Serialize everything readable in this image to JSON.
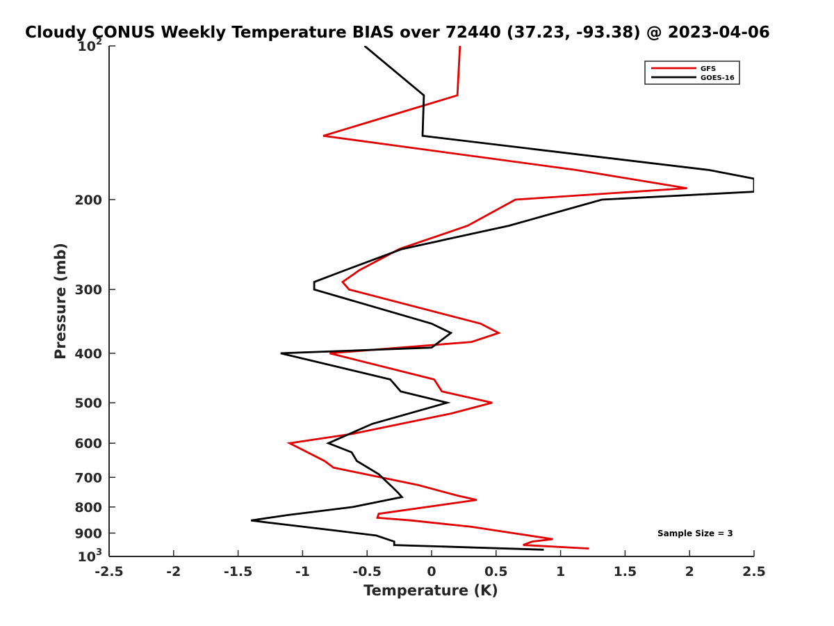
{
  "chart_data": {
    "type": "line",
    "title": "Cloudy CONUS Weekly Temperature BIAS over 72440 (37.23, -93.38) @ 2023-04-06",
    "xlabel": "Temperature (K)",
    "ylabel": "Pressure (mb)",
    "xlim": [
      -2.5,
      2.5
    ],
    "ylim": [
      100,
      1000
    ],
    "y_scale": "log",
    "y_reversed": true,
    "x_ticks": [
      -2.5,
      -2,
      -1.5,
      -1,
      -0.5,
      0,
      0.5,
      1,
      1.5,
      2,
      2.5
    ],
    "x_tick_labels": [
      "-2.5",
      "-2",
      "-1.5",
      "-1",
      "-0.5",
      "0",
      "0.5",
      "1",
      "1.5",
      "2",
      "2.5"
    ],
    "y_ticks": [
      {
        "value": 100,
        "base": "10",
        "exp": "2"
      },
      {
        "value": 200,
        "label": "200"
      },
      {
        "value": 300,
        "label": "300"
      },
      {
        "value": 400,
        "label": "400"
      },
      {
        "value": 500,
        "label": "500"
      },
      {
        "value": 600,
        "label": "600"
      },
      {
        "value": 700,
        "label": "700"
      },
      {
        "value": 800,
        "label": "800"
      },
      {
        "value": 900,
        "label": "900"
      },
      {
        "value": 1000,
        "base": "10",
        "exp": "3"
      }
    ],
    "grid": false,
    "legend_position": "top-right",
    "series": [
      {
        "name": "GFS",
        "color": "#e00000",
        "points": [
          [
            0.22,
            100
          ],
          [
            0.2,
            125
          ],
          [
            -0.84,
            150
          ],
          [
            1.12,
            175
          ],
          [
            1.98,
            190
          ],
          [
            0.65,
            200
          ],
          [
            0.28,
            225
          ],
          [
            -0.25,
            250
          ],
          [
            -0.56,
            275
          ],
          [
            -0.69,
            290
          ],
          [
            -0.64,
            300
          ],
          [
            0.38,
            350
          ],
          [
            0.52,
            365
          ],
          [
            0.31,
            380
          ],
          [
            -0.79,
            400
          ],
          [
            0.02,
            450
          ],
          [
            0.08,
            475
          ],
          [
            0.47,
            500
          ],
          [
            0.15,
            525
          ],
          [
            -0.61,
            575
          ],
          [
            -1.1,
            600
          ],
          [
            -0.83,
            650
          ],
          [
            -0.76,
            670
          ],
          [
            -0.1,
            725
          ],
          [
            0.2,
            760
          ],
          [
            0.35,
            775
          ],
          [
            -0.41,
            825
          ],
          [
            -0.42,
            840
          ],
          [
            -0.16,
            850
          ],
          [
            0.31,
            875
          ],
          [
            0.94,
            925
          ],
          [
            0.78,
            935
          ],
          [
            0.71,
            950
          ],
          [
            1.22,
            965
          ]
        ]
      },
      {
        "name": "GOES-16",
        "color": "#000000",
        "points": [
          [
            -0.52,
            100
          ],
          [
            -0.06,
            125
          ],
          [
            -0.07,
            150
          ],
          [
            2.15,
            175
          ],
          [
            2.5,
            182
          ],
          [
            2.5,
            193
          ],
          [
            1.32,
            200
          ],
          [
            0.6,
            225
          ],
          [
            -0.23,
            250
          ],
          [
            -0.67,
            275
          ],
          [
            -0.91,
            290
          ],
          [
            -0.91,
            300
          ],
          [
            0.0,
            350
          ],
          [
            0.15,
            365
          ],
          [
            0.0,
            390
          ],
          [
            -1.17,
            400
          ],
          [
            -0.32,
            450
          ],
          [
            -0.24,
            475
          ],
          [
            0.12,
            500
          ],
          [
            -0.46,
            550
          ],
          [
            -0.8,
            600
          ],
          [
            -0.62,
            625
          ],
          [
            -0.58,
            650
          ],
          [
            -0.41,
            690
          ],
          [
            -0.32,
            725
          ],
          [
            -0.26,
            750
          ],
          [
            -0.23,
            765
          ],
          [
            -0.61,
            800
          ],
          [
            -1.12,
            830
          ],
          [
            -1.4,
            850
          ],
          [
            -1.24,
            860
          ],
          [
            -0.74,
            890
          ],
          [
            -0.43,
            910
          ],
          [
            -0.29,
            935
          ],
          [
            -0.29,
            950
          ],
          [
            0.87,
            970
          ]
        ]
      }
    ],
    "annotations": [
      {
        "text": "Sample Size = 3",
        "position": "bottom-right"
      }
    ]
  }
}
